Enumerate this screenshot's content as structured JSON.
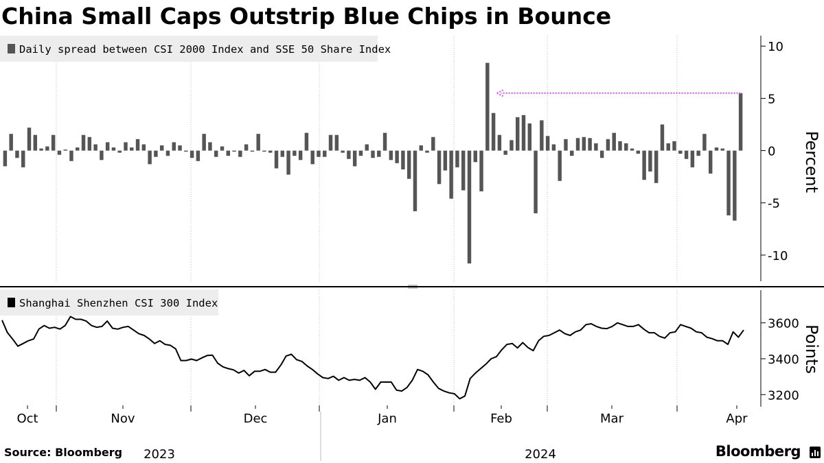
{
  "title": "China Small Caps Outstrip Blue Chips in Bounce",
  "source": "Source: Bloomberg",
  "brand": "Bloomberg",
  "colors": {
    "bar": "#555555",
    "line": "#000000",
    "arrow": "#d46ee8",
    "grid": "#bbbbbb",
    "legend_bg": "#ededed"
  },
  "chart_data": [
    {
      "type": "bar",
      "legend": "Daily spread between CSI 2000 Index and SSE 50 Share Index",
      "ylabel": "Percent",
      "ylim": [
        -12.5,
        11
      ],
      "yticks": [
        10,
        5,
        0,
        -5,
        -10
      ],
      "ytick_labels": [
        "10",
        "5",
        "0",
        "-5",
        "-10"
      ],
      "values": [
        -1.5,
        1.6,
        -0.7,
        -1.6,
        2.2,
        1.5,
        0.2,
        0.4,
        1.5,
        -0.4,
        0.1,
        -1.0,
        0.3,
        1.5,
        1.3,
        0.6,
        -0.9,
        0.8,
        0.3,
        -0.2,
        0.8,
        0.3,
        1.1,
        0.6,
        -1.3,
        -0.6,
        0.5,
        -0.5,
        0.8,
        0.5,
        -0.1,
        -0.7,
        -1.0,
        1.6,
        0.8,
        -0.6,
        0.4,
        -0.5,
        -0.1,
        -0.6,
        0.6,
        -0.1,
        1.6,
        -0.1,
        -0.2,
        -1.7,
        -0.6,
        -2.3,
        -0.5,
        -0.9,
        1.7,
        -1.3,
        -0.6,
        -0.6,
        1.5,
        1.5,
        -0.2,
        -0.8,
        -1.5,
        -0.5,
        0.6,
        -0.7,
        -0.6,
        1.7,
        -0.9,
        -1.2,
        -1.8,
        -2.7,
        -5.8,
        0.5,
        -0.2,
        1.3,
        -3.2,
        -1.9,
        -4.6,
        -1.6,
        -3.8,
        -10.8,
        -1.1,
        -3.9,
        8.4,
        3.6,
        1.5,
        -0.4,
        1.0,
        3.2,
        3.4,
        2.6,
        -6.0,
        2.9,
        1.4,
        0.6,
        -2.9,
        1.1,
        -0.5,
        1.2,
        1.3,
        1.2,
        0.7,
        -0.7,
        1.1,
        1.7,
        0.9,
        0.7,
        0.2,
        -0.3,
        -2.8,
        -2.0,
        -3.1,
        2.5,
        0.7,
        0.9,
        -0.3,
        -0.8,
        -1.6,
        -0.5,
        1.6,
        -2.2,
        0.3,
        0.2,
        -6.2,
        -6.7,
        5.5
      ],
      "arrow": {
        "from": 5.5,
        "to": 5.5
      }
    },
    {
      "type": "line",
      "legend": "Shanghai Shenzhen CSI 300 Index",
      "ylabel": "Points",
      "ylim": [
        3140,
        3790
      ],
      "yticks": [
        3600,
        3400,
        3200
      ],
      "ytick_labels": [
        "3600",
        "3400",
        "3200"
      ],
      "values": [
        3615,
        3546,
        3510,
        3470,
        3485,
        3500,
        3510,
        3565,
        3585,
        3570,
        3575,
        3565,
        3585,
        3635,
        3620,
        3620,
        3610,
        3585,
        3575,
        3580,
        3610,
        3570,
        3565,
        3575,
        3580,
        3560,
        3540,
        3530,
        3510,
        3485,
        3500,
        3480,
        3475,
        3455,
        3390,
        3390,
        3398,
        3390,
        3405,
        3418,
        3420,
        3375,
        3355,
        3345,
        3338,
        3320,
        3335,
        3305,
        3330,
        3330,
        3340,
        3325,
        3325,
        3365,
        3415,
        3425,
        3395,
        3385,
        3360,
        3340,
        3315,
        3295,
        3290,
        3302,
        3280,
        3295,
        3280,
        3285,
        3280,
        3295,
        3270,
        3230,
        3270,
        3270,
        3270,
        3225,
        3220,
        3240,
        3280,
        3340,
        3330,
        3310,
        3270,
        3235,
        3220,
        3210,
        3205,
        3177,
        3192,
        3290,
        3320,
        3345,
        3370,
        3400,
        3412,
        3450,
        3480,
        3485,
        3460,
        3490,
        3462,
        3445,
        3500,
        3525,
        3530,
        3545,
        3560,
        3540,
        3530,
        3550,
        3560,
        3590,
        3595,
        3580,
        3570,
        3568,
        3580,
        3600,
        3590,
        3580,
        3580,
        3590,
        3565,
        3545,
        3545,
        3525,
        3515,
        3545,
        3550,
        3590,
        3580,
        3570,
        3550,
        3545,
        3520,
        3512,
        3500,
        3500,
        3480,
        3550,
        3520,
        3560
      ]
    }
  ],
  "x_axis": {
    "month_labels": [
      "Oct",
      "Nov",
      "Dec",
      "Jan",
      "Feb",
      "Mar",
      "Apr"
    ],
    "year_labels": [
      "2023",
      "2024"
    ]
  }
}
